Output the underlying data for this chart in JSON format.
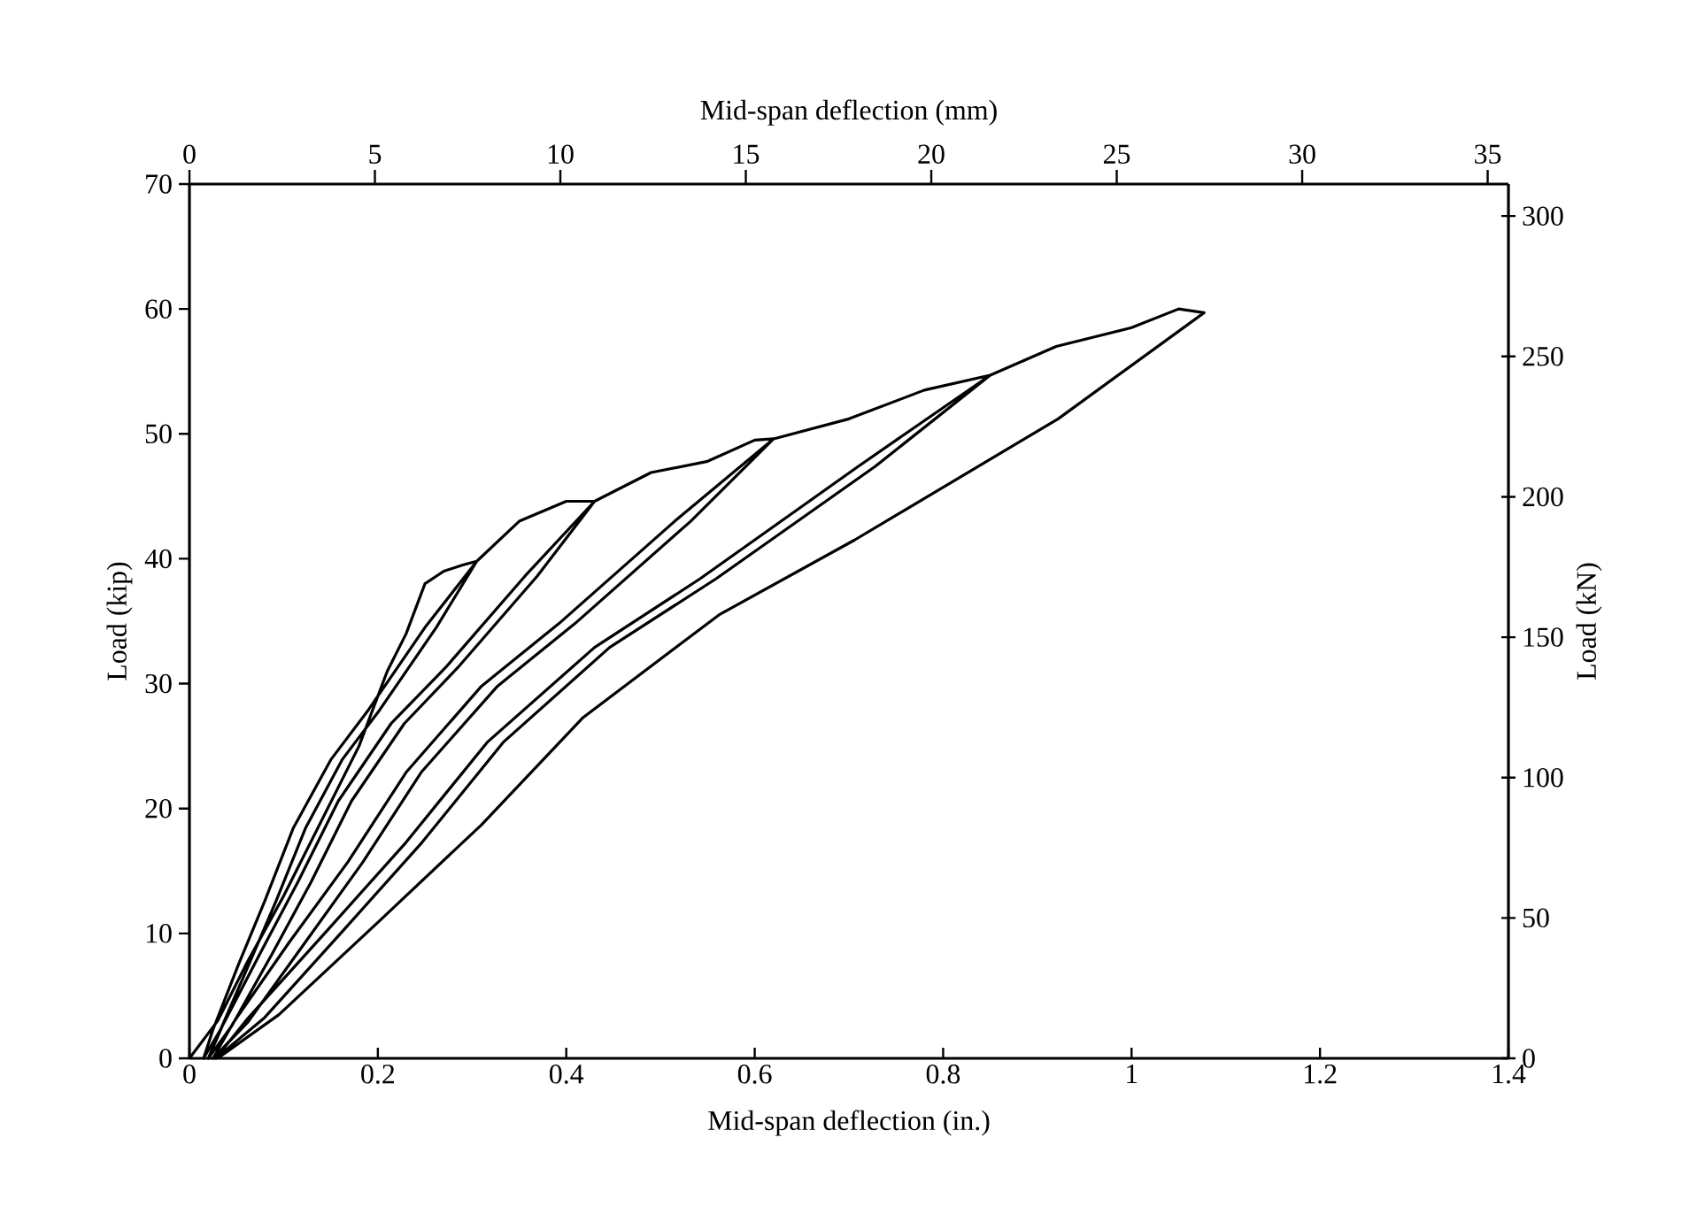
{
  "chart_data": {
    "type": "line",
    "xlabel": "Mid-span deflection (in.)",
    "x2label": "Mid-span deflection (mm)",
    "ylabel": "Load (kip)",
    "y2label": "Load (kN)",
    "xlim": [
      0,
      1.4
    ],
    "xticks": [
      0,
      0.2,
      0.4,
      0.6,
      0.8,
      1,
      1.2,
      1.4
    ],
    "ylim": [
      0,
      70
    ],
    "yticks": [
      0,
      10,
      20,
      30,
      40,
      50,
      60,
      70
    ],
    "x2lim": [
      0,
      35.56
    ],
    "x2ticks": [
      0,
      5,
      10,
      15,
      20,
      25,
      30,
      35
    ],
    "y2lim": [
      0,
      311.4
    ],
    "y2ticks": [
      0,
      50,
      100,
      150,
      200,
      250,
      300
    ],
    "marker": "none",
    "line_style": "solid",
    "series": [
      {
        "color": "#000000",
        "x": [
          0,
          0.03,
          0.06,
          0.1,
          0.14,
          0.18,
          0.21,
          0.23,
          0.25,
          0.27,
          0.29,
          0.305,
          0.262,
          0.202,
          0.162,
          0.123,
          0.092,
          0.063,
          0.033,
          0.015,
          0.025,
          0.052,
          0.08,
          0.11,
          0.15,
          0.19,
          0.25,
          0.305,
          0.35,
          0.4,
          0.43,
          0.369,
          0.285,
          0.228,
          0.172,
          0.129,
          0.088,
          0.045,
          0.02,
          0.035,
          0.075,
          0.115,
          0.158,
          0.214,
          0.272,
          0.356,
          0.43,
          0.49,
          0.55,
          0.6,
          0.62,
          0.532,
          0.409,
          0.327,
          0.246,
          0.184,
          0.123,
          0.062,
          0.025,
          0.047,
          0.106,
          0.168,
          0.23,
          0.31,
          0.392,
          0.515,
          0.62,
          0.7,
          0.78,
          0.85,
          0.728,
          0.559,
          0.446,
          0.333,
          0.247,
          0.164,
          0.079,
          0.028,
          0.062,
          0.147,
          0.23,
          0.316,
          0.43,
          0.542,
          0.71,
          0.85,
          0.92,
          1.0,
          1.05,
          1.077,
          0.922,
          0.706,
          0.562,
          0.418,
          0.31,
          0.203,
          0.095,
          0.03
        ],
        "values": [
          0,
          3,
          7.5,
          13,
          19,
          25,
          31,
          34,
          38,
          39,
          39.5,
          39.8,
          34.5,
          27.9,
          23.9,
          18.4,
          12.6,
          7.5,
          2.3,
          0,
          2.3,
          7.5,
          12.6,
          18.4,
          23.9,
          27.9,
          34.5,
          39.8,
          43,
          44.6,
          44.6,
          38.6,
          31.3,
          26.8,
          20.6,
          14.1,
          8.4,
          2.6,
          0,
          2.6,
          8.4,
          14.1,
          20.6,
          26.8,
          31.3,
          38.6,
          44.6,
          46.9,
          47.8,
          49.5,
          49.6,
          43.0,
          34.8,
          29.8,
          22.9,
          15.7,
          9.3,
          2.9,
          0,
          2.9,
          9.3,
          15.7,
          22.9,
          29.8,
          34.8,
          43.0,
          49.6,
          51.2,
          53.5,
          54.7,
          47.4,
          38.4,
          32.9,
          25.3,
          17.3,
          10.3,
          3.2,
          0,
          3.2,
          10.3,
          17.3,
          25.3,
          32.9,
          38.4,
          47.4,
          54.7,
          57.0,
          58.5,
          60.0,
          59.7,
          51.2,
          41.5,
          35.5,
          27.3,
          18.7,
          11.1,
          3.5,
          0
        ]
      }
    ]
  }
}
